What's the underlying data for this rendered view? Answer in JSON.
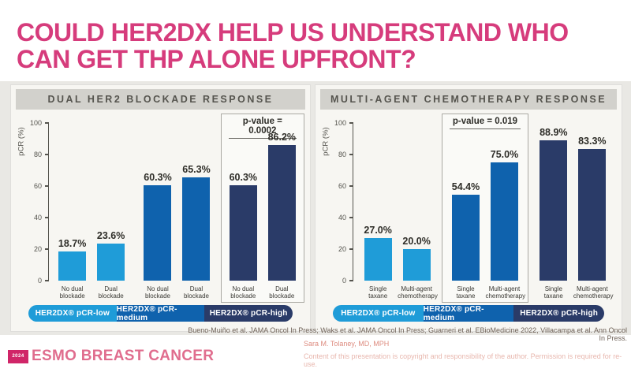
{
  "slide": {
    "title_line1": "COULD HER2DX HELP US UNDERSTAND WHO",
    "title_line2": "CAN GET THP ALONE UPFRONT?",
    "title_color": "#d63c7c"
  },
  "chart_data": [
    {
      "type": "bar",
      "title": "DUAL HER2 BLOCKADE RESPONSE",
      "ylabel": "pCR (%)",
      "ylim": [
        0,
        100
      ],
      "yticks": [
        0,
        20,
        40,
        60,
        80,
        100
      ],
      "grid": false,
      "legend_position": "bottom",
      "groups": [
        {
          "legend": "HER2DX® pCR-low",
          "color": "#1f9cd8",
          "bars": [
            {
              "category": "No dual blockade",
              "value": 18.7,
              "label": "18.7%"
            },
            {
              "category": "Dual blockade",
              "value": 23.6,
              "label": "23.6%"
            }
          ]
        },
        {
          "legend": "HER2DX® pCR-medium",
          "color": "#0f62ad",
          "bars": [
            {
              "category": "No dual blockade",
              "value": 60.3,
              "label": "60.3%"
            },
            {
              "category": "Dual blockade",
              "value": 65.3,
              "label": "65.3%"
            }
          ]
        },
        {
          "legend": "HER2DX® pCR-high",
          "color": "#2a3b68",
          "pvalue": "p-value = 0.0002",
          "bars": [
            {
              "category": "No dual blockade",
              "value": 60.3,
              "label": "60.3%"
            },
            {
              "category": "Dual blockade",
              "value": 86.2,
              "label": "86.2%"
            }
          ]
        }
      ]
    },
    {
      "type": "bar",
      "title": "MULTI-AGENT CHEMOTHERAPY RESPONSE",
      "ylabel": "pCR (%)",
      "ylim": [
        0,
        100
      ],
      "yticks": [
        0,
        20,
        40,
        60,
        80,
        100
      ],
      "grid": false,
      "legend_position": "bottom",
      "groups": [
        {
          "legend": "HER2DX® pCR-low",
          "color": "#1f9cd8",
          "bars": [
            {
              "category": "Single taxane",
              "value": 27.0,
              "label": "27.0%"
            },
            {
              "category": "Multi-agent chemotherapy",
              "value": 20.0,
              "label": "20.0%"
            }
          ]
        },
        {
          "legend": "HER2DX® pCR-medium",
          "color": "#0f62ad",
          "pvalue": "p-value = 0.019",
          "bars": [
            {
              "category": "Single taxane",
              "value": 54.4,
              "label": "54.4%"
            },
            {
              "category": "Multi-agent chemotherapy",
              "value": 75.0,
              "label": "75.0%"
            }
          ]
        },
        {
          "legend": "HER2DX® pCR-high",
          "color": "#2a3b68",
          "bars": [
            {
              "category": "Single taxane",
              "value": 88.9,
              "label": "88.9%"
            },
            {
              "category": "Multi-agent chemotherapy",
              "value": 83.3,
              "label": "83.3%"
            }
          ]
        }
      ]
    }
  ],
  "footer": {
    "citation": "Bueno-Muiño et al. JAMA Oncol In Press; Waks et al. JAMA Oncol In Press; Guarneri et al. EBioMedicine 2022, Villacampa et al. Ann Oncol In Press.",
    "author": "Sara M. Tolaney, MD, MPH",
    "copyright": "Content of this presentation is copyright and responsibility of the author. Permission is required for re-use.",
    "logo_badge": "2024",
    "logo_text": "ESMO BREAST CANCER"
  }
}
